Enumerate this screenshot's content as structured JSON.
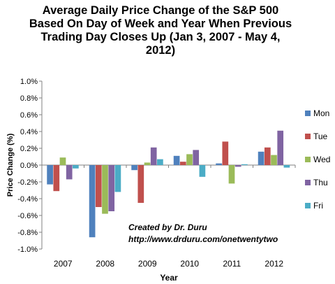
{
  "chart_data": {
    "type": "bar",
    "title_lines": [
      "Average Daily Price Change of the S&P 500",
      "Based On Day of Week and Year When Previous",
      "Trading Day Closes Up (Jan 3, 2007 - May 4,",
      "2012)"
    ],
    "xlabel": "Year",
    "ylabel": "Price Change (%)",
    "categories": [
      "2007",
      "2008",
      "2009",
      "2010",
      "2011",
      "2012"
    ],
    "ylim": [
      -1.0,
      1.0
    ],
    "yticks": [
      -1.0,
      -0.8,
      -0.6,
      -0.4,
      -0.2,
      0.0,
      0.2,
      0.4,
      0.6,
      0.8,
      1.0
    ],
    "ytick_labels": [
      "-1.0%",
      "-0.8%",
      "-0.6%",
      "-0.4%",
      "-0.2%",
      "0.0%",
      "0.2%",
      "0.4%",
      "0.6%",
      "0.8%",
      "1.0%"
    ],
    "grid": false,
    "legend": "right",
    "series": [
      {
        "name": "Mon",
        "color": "#4F81BD",
        "values": [
          -0.23,
          -0.86,
          -0.06,
          0.11,
          0.02,
          0.16
        ]
      },
      {
        "name": "Tue",
        "color": "#C0504D",
        "values": [
          -0.31,
          -0.5,
          -0.45,
          0.04,
          0.28,
          0.21
        ]
      },
      {
        "name": "Wed",
        "color": "#9BBB59",
        "values": [
          0.09,
          -0.58,
          0.03,
          0.13,
          -0.22,
          0.12
        ]
      },
      {
        "name": "Thu",
        "color": "#8064A2",
        "values": [
          -0.17,
          -0.55,
          0.21,
          0.18,
          -0.02,
          0.41
        ]
      },
      {
        "name": "Fri",
        "color": "#4BACC6",
        "values": [
          -0.04,
          -0.32,
          0.07,
          -0.14,
          0.01,
          -0.03
        ]
      }
    ],
    "annotation": {
      "line1": "Created by Dr. Duru",
      "line2": "http://www.drduru.com/onetwentytwo"
    }
  }
}
